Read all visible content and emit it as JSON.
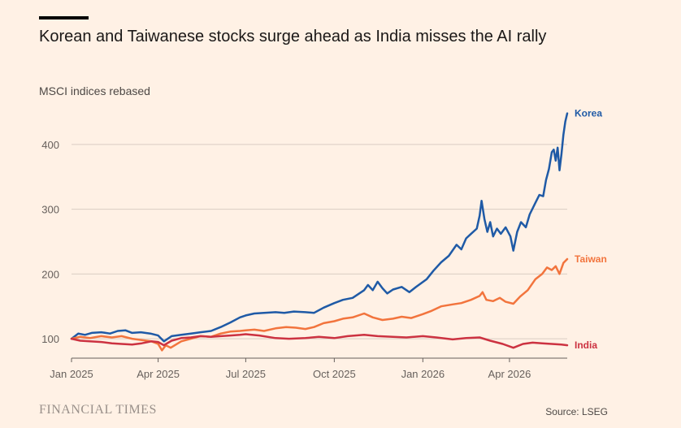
{
  "title": "Korean and Taiwanese stocks surge ahead as India misses the AI rally",
  "subtitle": "MSCI indices rebased",
  "footer": {
    "brand": "FINANCIAL TIMES",
    "source": "Source: LSEG"
  },
  "chart_data": {
    "type": "line",
    "title": "Korean and Taiwanese stocks surge ahead as India misses the AI rally",
    "ylabel": "MSCI indices rebased",
    "xlabel": "",
    "ylim": [
      70,
      460
    ],
    "xlim": [
      "2025-01-01",
      "2026-05-31"
    ],
    "yticks": [
      100,
      200,
      300,
      400
    ],
    "xticks": [
      {
        "date": "2025-01-01",
        "label": "Jan 2025"
      },
      {
        "date": "2025-04-01",
        "label": "Apr 2025"
      },
      {
        "date": "2025-07-01",
        "label": "Jul 2025"
      },
      {
        "date": "2025-10-01",
        "label": "Oct 2025"
      },
      {
        "date": "2026-01-01",
        "label": "Jan 2026"
      },
      {
        "date": "2026-04-01",
        "label": "Apr 2026"
      }
    ],
    "grid": true,
    "legend": "direct labels at line ends (right)",
    "series": [
      {
        "name": "Korea",
        "color": "#1f5aa6",
        "points": [
          [
            "2025-01-01",
            100
          ],
          [
            "2025-01-08",
            108
          ],
          [
            "2025-01-15",
            106
          ],
          [
            "2025-01-22",
            109
          ],
          [
            "2025-02-01",
            110
          ],
          [
            "2025-02-10",
            108
          ],
          [
            "2025-02-18",
            112
          ],
          [
            "2025-02-26",
            113
          ],
          [
            "2025-03-05",
            109
          ],
          [
            "2025-03-14",
            110
          ],
          [
            "2025-03-24",
            108
          ],
          [
            "2025-04-01",
            105
          ],
          [
            "2025-04-07",
            96
          ],
          [
            "2025-04-15",
            104
          ],
          [
            "2025-04-25",
            106
          ],
          [
            "2025-05-05",
            108
          ],
          [
            "2025-05-15",
            110
          ],
          [
            "2025-05-26",
            112
          ],
          [
            "2025-06-05",
            118
          ],
          [
            "2025-06-15",
            125
          ],
          [
            "2025-06-25",
            133
          ],
          [
            "2025-07-01",
            136
          ],
          [
            "2025-07-10",
            139
          ],
          [
            "2025-07-20",
            140
          ],
          [
            "2025-08-01",
            141
          ],
          [
            "2025-08-10",
            140
          ],
          [
            "2025-08-20",
            142
          ],
          [
            "2025-09-01",
            141
          ],
          [
            "2025-09-10",
            140
          ],
          [
            "2025-09-20",
            148
          ],
          [
            "2025-10-01",
            155
          ],
          [
            "2025-10-10",
            160
          ],
          [
            "2025-10-20",
            163
          ],
          [
            "2025-11-01",
            175
          ],
          [
            "2025-11-05",
            183
          ],
          [
            "2025-11-10",
            175
          ],
          [
            "2025-11-15",
            188
          ],
          [
            "2025-11-20",
            178
          ],
          [
            "2025-11-25",
            170
          ],
          [
            "2025-12-01",
            176
          ],
          [
            "2025-12-10",
            180
          ],
          [
            "2025-12-18",
            172
          ],
          [
            "2025-12-25",
            180
          ],
          [
            "2026-01-05",
            192
          ],
          [
            "2026-01-12",
            205
          ],
          [
            "2026-01-20",
            218
          ],
          [
            "2026-01-28",
            228
          ],
          [
            "2026-02-05",
            245
          ],
          [
            "2026-02-10",
            238
          ],
          [
            "2026-02-15",
            255
          ],
          [
            "2026-02-20",
            262
          ],
          [
            "2026-02-26",
            270
          ],
          [
            "2026-03-01",
            290
          ],
          [
            "2026-03-03",
            313
          ],
          [
            "2026-03-06",
            285
          ],
          [
            "2026-03-09",
            265
          ],
          [
            "2026-03-12",
            280
          ],
          [
            "2026-03-15",
            258
          ],
          [
            "2026-03-19",
            270
          ],
          [
            "2026-03-23",
            262
          ],
          [
            "2026-03-28",
            272
          ],
          [
            "2026-04-02",
            258
          ],
          [
            "2026-04-05",
            236
          ],
          [
            "2026-04-09",
            265
          ],
          [
            "2026-04-13",
            280
          ],
          [
            "2026-04-18",
            272
          ],
          [
            "2026-04-22",
            292
          ],
          [
            "2026-04-28",
            310
          ],
          [
            "2026-05-02",
            322
          ],
          [
            "2026-05-06",
            320
          ],
          [
            "2026-05-09",
            345
          ],
          [
            "2026-05-12",
            362
          ],
          [
            "2026-05-15",
            388
          ],
          [
            "2026-05-17",
            392
          ],
          [
            "2026-05-19",
            375
          ],
          [
            "2026-05-21",
            395
          ],
          [
            "2026-05-23",
            360
          ],
          [
            "2026-05-25",
            385
          ],
          [
            "2026-05-27",
            415
          ],
          [
            "2026-05-29",
            435
          ],
          [
            "2026-05-31",
            448
          ]
        ]
      },
      {
        "name": "Taiwan",
        "color": "#f2743d",
        "points": [
          [
            "2025-01-01",
            100
          ],
          [
            "2025-01-10",
            103
          ],
          [
            "2025-01-20",
            101
          ],
          [
            "2025-02-01",
            104
          ],
          [
            "2025-02-12",
            102
          ],
          [
            "2025-02-22",
            104
          ],
          [
            "2025-03-05",
            100
          ],
          [
            "2025-03-15",
            98
          ],
          [
            "2025-03-25",
            96
          ],
          [
            "2025-04-01",
            92
          ],
          [
            "2025-04-05",
            82
          ],
          [
            "2025-04-09",
            90
          ],
          [
            "2025-04-14",
            86
          ],
          [
            "2025-04-25",
            96
          ],
          [
            "2025-05-05",
            100
          ],
          [
            "2025-05-15",
            104
          ],
          [
            "2025-05-26",
            103
          ],
          [
            "2025-06-05",
            108
          ],
          [
            "2025-06-15",
            111
          ],
          [
            "2025-06-25",
            112
          ],
          [
            "2025-07-01",
            113
          ],
          [
            "2025-07-10",
            114
          ],
          [
            "2025-07-20",
            112
          ],
          [
            "2025-08-01",
            116
          ],
          [
            "2025-08-12",
            118
          ],
          [
            "2025-08-22",
            117
          ],
          [
            "2025-09-01",
            115
          ],
          [
            "2025-09-10",
            118
          ],
          [
            "2025-09-20",
            124
          ],
          [
            "2025-10-01",
            127
          ],
          [
            "2025-10-10",
            131
          ],
          [
            "2025-10-20",
            133
          ],
          [
            "2025-11-01",
            139
          ],
          [
            "2025-11-10",
            133
          ],
          [
            "2025-11-20",
            129
          ],
          [
            "2025-12-01",
            131
          ],
          [
            "2025-12-10",
            134
          ],
          [
            "2025-12-20",
            132
          ],
          [
            "2026-01-01",
            138
          ],
          [
            "2026-01-10",
            143
          ],
          [
            "2026-01-20",
            150
          ],
          [
            "2026-02-01",
            153
          ],
          [
            "2026-02-10",
            155
          ],
          [
            "2026-02-20",
            160
          ],
          [
            "2026-03-01",
            166
          ],
          [
            "2026-03-04",
            172
          ],
          [
            "2026-03-08",
            160
          ],
          [
            "2026-03-15",
            158
          ],
          [
            "2026-03-22",
            163
          ],
          [
            "2026-03-28",
            157
          ],
          [
            "2026-04-05",
            154
          ],
          [
            "2026-04-12",
            165
          ],
          [
            "2026-04-20",
            175
          ],
          [
            "2026-04-28",
            192
          ],
          [
            "2026-05-05",
            200
          ],
          [
            "2026-05-10",
            210
          ],
          [
            "2026-05-15",
            206
          ],
          [
            "2026-05-19",
            212
          ],
          [
            "2026-05-23",
            200
          ],
          [
            "2026-05-27",
            217
          ],
          [
            "2026-05-31",
            223
          ]
        ]
      },
      {
        "name": "India",
        "color": "#cc3241",
        "points": [
          [
            "2025-01-01",
            100
          ],
          [
            "2025-01-10",
            97
          ],
          [
            "2025-01-20",
            96
          ],
          [
            "2025-02-01",
            95
          ],
          [
            "2025-02-12",
            93
          ],
          [
            "2025-02-22",
            92
          ],
          [
            "2025-03-05",
            91
          ],
          [
            "2025-03-15",
            93
          ],
          [
            "2025-03-25",
            96
          ],
          [
            "2025-04-01",
            95
          ],
          [
            "2025-04-07",
            90
          ],
          [
            "2025-04-15",
            97
          ],
          [
            "2025-04-25",
            101
          ],
          [
            "2025-05-05",
            102
          ],
          [
            "2025-05-15",
            104
          ],
          [
            "2025-05-26",
            103
          ],
          [
            "2025-06-05",
            104
          ],
          [
            "2025-06-15",
            105
          ],
          [
            "2025-06-25",
            106
          ],
          [
            "2025-07-01",
            107
          ],
          [
            "2025-07-15",
            105
          ],
          [
            "2025-08-01",
            101
          ],
          [
            "2025-08-15",
            100
          ],
          [
            "2025-09-01",
            101
          ],
          [
            "2025-09-15",
            103
          ],
          [
            "2025-10-01",
            101
          ],
          [
            "2025-10-15",
            104
          ],
          [
            "2025-11-01",
            106
          ],
          [
            "2025-11-15",
            104
          ],
          [
            "2025-12-01",
            103
          ],
          [
            "2025-12-15",
            102
          ],
          [
            "2026-01-01",
            104
          ],
          [
            "2026-01-15",
            102
          ],
          [
            "2026-02-01",
            99
          ],
          [
            "2026-02-15",
            101
          ],
          [
            "2026-03-01",
            102
          ],
          [
            "2026-03-12",
            97
          ],
          [
            "2026-03-25",
            92
          ],
          [
            "2026-04-05",
            86
          ],
          [
            "2026-04-15",
            92
          ],
          [
            "2026-04-25",
            94
          ],
          [
            "2026-05-05",
            93
          ],
          [
            "2026-05-15",
            92
          ],
          [
            "2026-05-25",
            91
          ],
          [
            "2026-05-31",
            90
          ]
        ]
      }
    ]
  }
}
